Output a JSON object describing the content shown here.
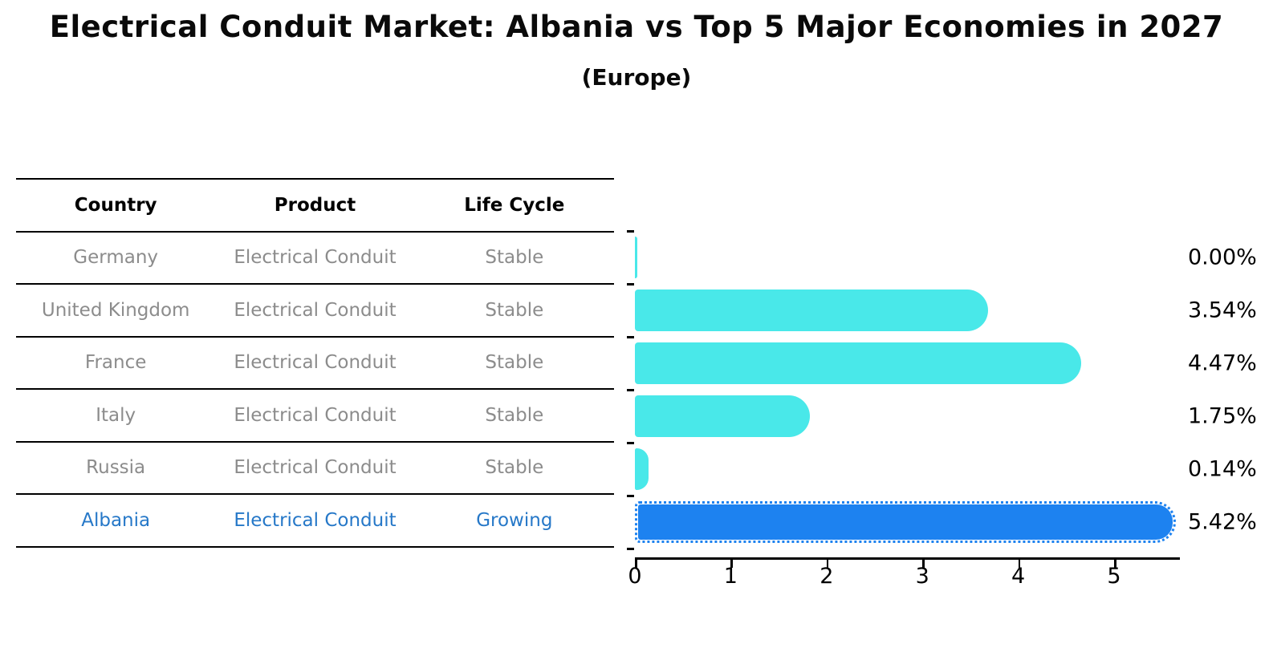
{
  "title": "Electrical Conduit Market: Albania vs Top 5 Major Economies in 2027",
  "subtitle": "(Europe)",
  "table": {
    "headers": [
      "Country",
      "Product",
      "Life Cycle"
    ],
    "rows": [
      {
        "country": "Germany",
        "product": "Electrical Conduit",
        "life_cycle": "Stable",
        "highlight": false
      },
      {
        "country": "United Kingdom",
        "product": "Electrical Conduit",
        "life_cycle": "Stable",
        "highlight": false
      },
      {
        "country": "France",
        "product": "Electrical Conduit",
        "life_cycle": "Stable",
        "highlight": false
      },
      {
        "country": "Italy",
        "product": "Electrical Conduit",
        "life_cycle": "Stable",
        "highlight": false
      },
      {
        "country": "Russia",
        "product": "Electrical Conduit",
        "life_cycle": "Stable",
        "highlight": false
      },
      {
        "country": "Albania",
        "product": "Electrical Conduit",
        "life_cycle": "Growing",
        "highlight": true
      }
    ]
  },
  "chart_data": {
    "type": "bar",
    "orientation": "horizontal",
    "title": "Electrical Conduit Market: Albania vs Top 5 Major Economies in 2027 (Europe)",
    "categories": [
      "Germany",
      "United Kingdom",
      "France",
      "Italy",
      "Russia",
      "Albania"
    ],
    "values": [
      0.0,
      3.54,
      4.47,
      1.75,
      0.14,
      5.42
    ],
    "value_labels": [
      "0.00%",
      "3.54%",
      "4.47%",
      "1.75%",
      "0.14%",
      "5.42%"
    ],
    "highlight_index": 5,
    "xticks": [
      0,
      1,
      2,
      3,
      4,
      5
    ],
    "xlim": [
      0,
      5.67
    ],
    "grid": false,
    "legend": false,
    "bar_color_default": "#49e8e9",
    "bar_color_highlight": "#1d82f0"
  },
  "colors": {
    "highlight_text": "#2678c8",
    "muted_text": "#8c8c8c",
    "axis": "#000000"
  }
}
